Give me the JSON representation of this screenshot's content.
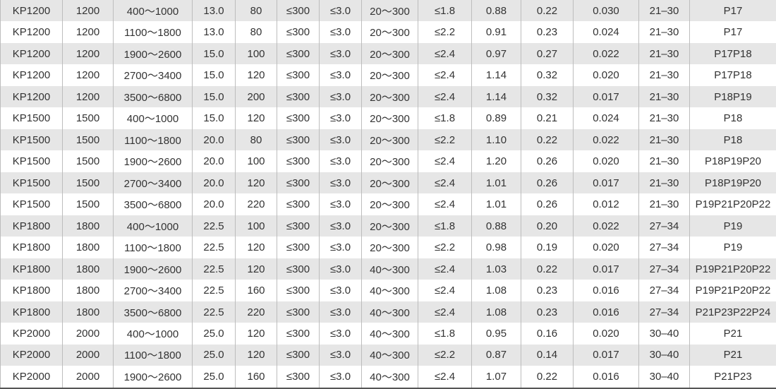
{
  "table": {
    "rows": [
      [
        "KP1200",
        "1200",
        "400～1000",
        "13.0",
        "80",
        "≤300",
        "≤3.0",
        "20～300",
        "≤1.8",
        "0.88",
        "0.22",
        "0.030",
        "21–30",
        "P17"
      ],
      [
        "KP1200",
        "1200",
        "1100～1800",
        "13.0",
        "80",
        "≤300",
        "≤3.0",
        "20～300",
        "≤2.2",
        "0.91",
        "0.23",
        "0.024",
        "21–30",
        "P17"
      ],
      [
        "KP1200",
        "1200",
        "1900～2600",
        "15.0",
        "100",
        "≤300",
        "≤3.0",
        "20～300",
        "≤2.4",
        "0.97",
        "0.27",
        "0.022",
        "21–30",
        "P17P18"
      ],
      [
        "KP1200",
        "1200",
        "2700～3400",
        "15.0",
        "120",
        "≤300",
        "≤3.0",
        "20～300",
        "≤2.4",
        "1.14",
        "0.32",
        "0.020",
        "21–30",
        "P17P18"
      ],
      [
        "KP1200",
        "1200",
        "3500～6800",
        "15.0",
        "200",
        "≤300",
        "≤3.0",
        "20～300",
        "≤2.4",
        "1.14",
        "0.32",
        "0.017",
        "21–30",
        "P18P19"
      ],
      [
        "KP1500",
        "1500",
        "400～1000",
        "15.0",
        "120",
        "≤300",
        "≤3.0",
        "20～300",
        "≤1.8",
        "0.89",
        "0.21",
        "0.024",
        "21–30",
        "P18"
      ],
      [
        "KP1500",
        "1500",
        "1100～1800",
        "20.0",
        "80",
        "≤300",
        "≤3.0",
        "20～300",
        "≤2.2",
        "1.10",
        "0.22",
        "0.022",
        "21–30",
        "P18"
      ],
      [
        "KP1500",
        "1500",
        "1900～2600",
        "20.0",
        "100",
        "≤300",
        "≤3.0",
        "20～300",
        "≤2.4",
        "1.20",
        "0.26",
        "0.020",
        "21–30",
        "P18P19P20"
      ],
      [
        "KP1500",
        "1500",
        "2700～3400",
        "20.0",
        "120",
        "≤300",
        "≤3.0",
        "20～300",
        "≤2.4",
        "1.01",
        "0.26",
        "0.017",
        "21–30",
        "P18P19P20"
      ],
      [
        "KP1500",
        "1500",
        "3500～6800",
        "20.0",
        "220",
        "≤300",
        "≤3.0",
        "20～300",
        "≤2.4",
        "1.01",
        "0.26",
        "0.012",
        "21–30",
        "P19P21P20P22"
      ],
      [
        "KP1800",
        "1800",
        "400～1000",
        "22.5",
        "100",
        "≤300",
        "≤3.0",
        "20～300",
        "≤1.8",
        "0.88",
        "0.20",
        "0.022",
        "27–34",
        "P19"
      ],
      [
        "KP1800",
        "1800",
        "1100～1800",
        "22.5",
        "120",
        "≤300",
        "≤3.0",
        "20～300",
        "≤2.2",
        "0.98",
        "0.19",
        "0.020",
        "27–34",
        "P19"
      ],
      [
        "KP1800",
        "1800",
        "1900～2600",
        "22.5",
        "120",
        "≤300",
        "≤3.0",
        "40～300",
        "≤2.4",
        "1.03",
        "0.22",
        "0.017",
        "27–34",
        "P19P21P20P22"
      ],
      [
        "KP1800",
        "1800",
        "2700～3400",
        "22.5",
        "160",
        "≤300",
        "≤3.0",
        "40～300",
        "≤2.4",
        "1.08",
        "0.23",
        "0.016",
        "27–34",
        "P19P21P20P22"
      ],
      [
        "KP1800",
        "1800",
        "3500～6800",
        "22.5",
        "220",
        "≤300",
        "≤3.0",
        "40～300",
        "≤2.4",
        "1.08",
        "0.23",
        "0.016",
        "27–34",
        "P21P23P22P24"
      ],
      [
        "KP2000",
        "2000",
        "400～1000",
        "25.0",
        "120",
        "≤300",
        "≤3.0",
        "40～300",
        "≤1.8",
        "0.95",
        "0.16",
        "0.020",
        "30–40",
        "P21"
      ],
      [
        "KP2000",
        "2000",
        "1100～1800",
        "25.0",
        "120",
        "≤300",
        "≤3.0",
        "40～300",
        "≤2.2",
        "0.87",
        "0.14",
        "0.017",
        "30–40",
        "P21"
      ],
      [
        "KP2000",
        "2000",
        "1900～2600",
        "25.0",
        "160",
        "≤300",
        "≤3.0",
        "40～300",
        "≤2.4",
        "1.07",
        "0.22",
        "0.016",
        "30–40",
        "P21P23"
      ]
    ]
  }
}
